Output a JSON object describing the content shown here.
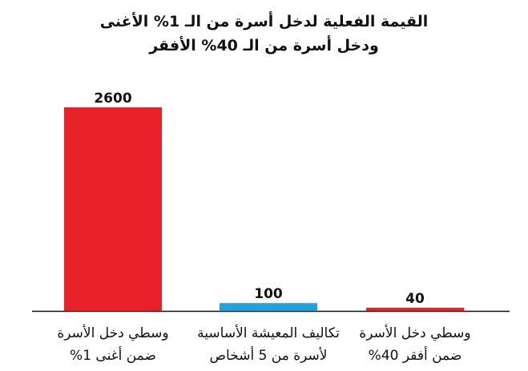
{
  "chart_data": {
    "type": "bar",
    "title": "القيمة الفعلية لدخل أسرة من الـ 1% الأغنى\nودخل أسرة من الـ 40% الأفقر",
    "categories": [
      "وسطي دخل الأسرة\nضمن أغنى 1%",
      "تكاليف المعيشة الأساسية\nلأسرة من 5 أشخاص",
      "وسطي دخل الأسرة\nضمن أفقر 40%"
    ],
    "values": [
      2600,
      100,
      40
    ],
    "colors": [
      "#e8202a",
      "#1ea3dc",
      "#e8202a"
    ]
  }
}
